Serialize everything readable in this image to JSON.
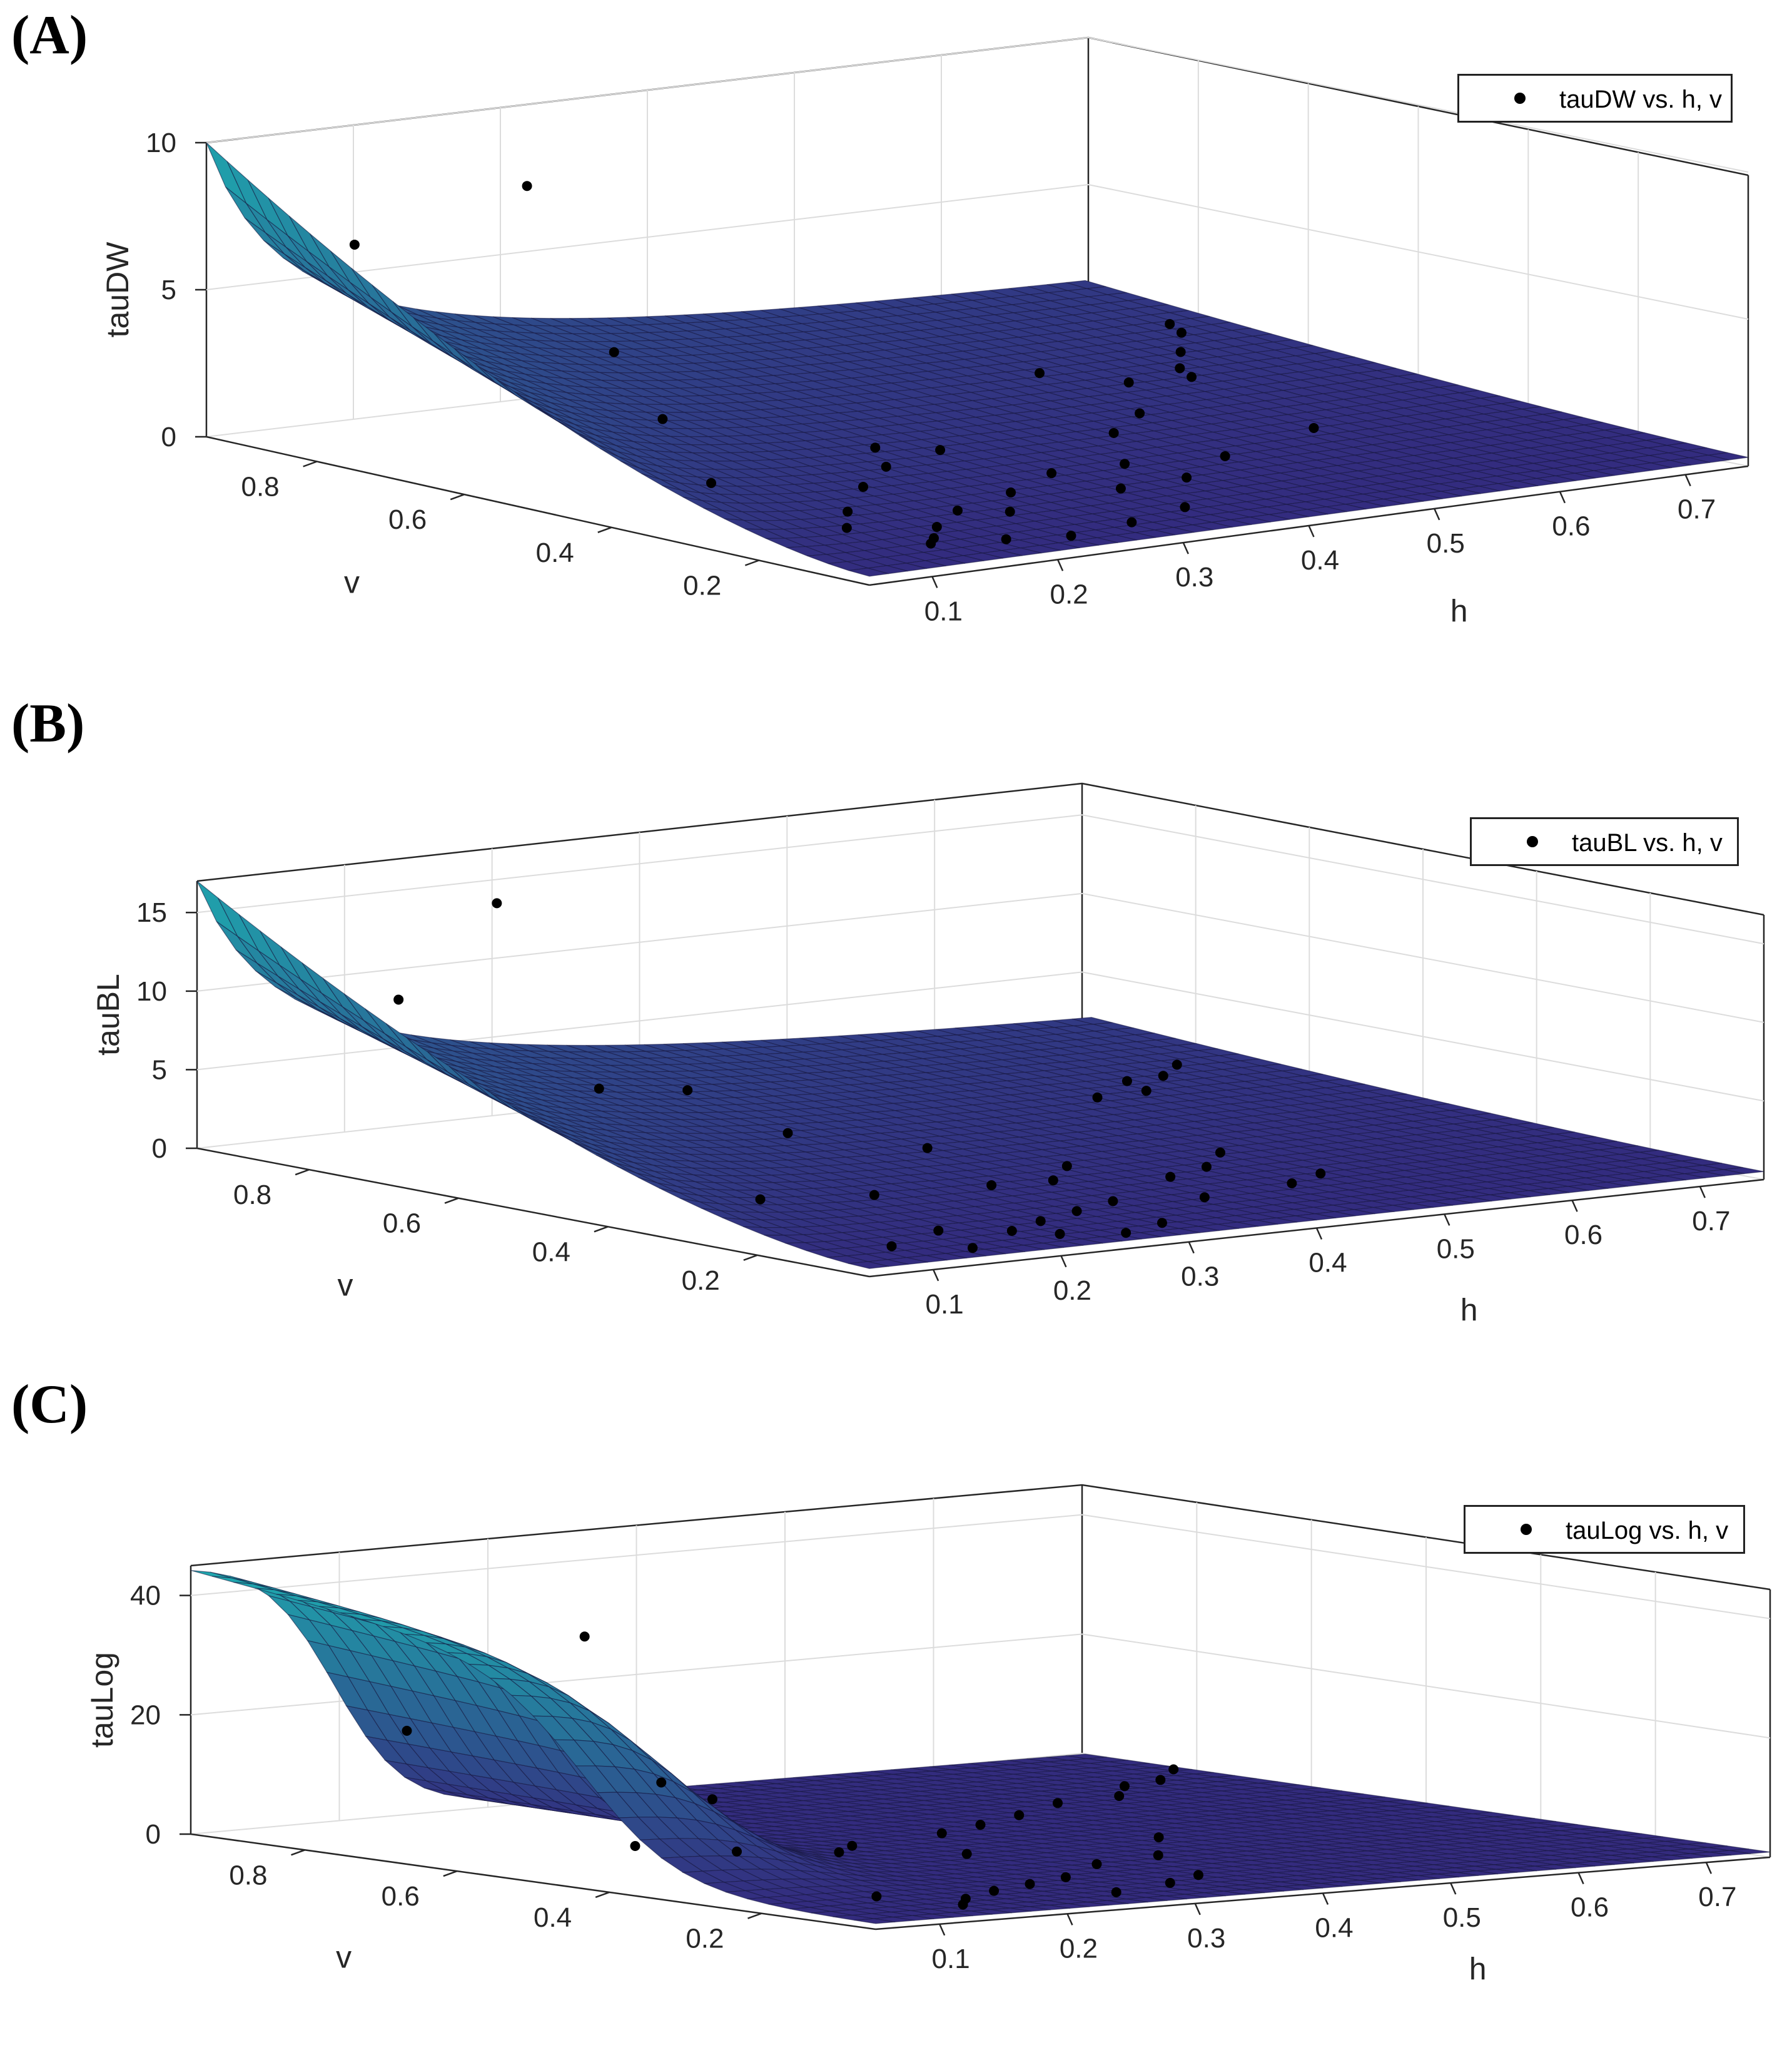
{
  "figure": {
    "panels": [
      {
        "label": "(A)",
        "legend": "tauDW vs. h, v"
      },
      {
        "label": "(B)",
        "legend": "tauBL vs. h, v"
      },
      {
        "label": "(C)",
        "legend": "tauLog vs. h, v"
      }
    ]
  },
  "chart_data": [
    {
      "type": "surface",
      "title": "(A)",
      "xlabel": "h",
      "ylabel": "v",
      "zlabel": "tauDW",
      "legend": "tauDW vs. h, v",
      "xlim": [
        0.05,
        0.75
      ],
      "ylim": [
        0.05,
        0.95
      ],
      "zlim": [
        0,
        10
      ],
      "xticks": [
        "0.1",
        "0.2",
        "0.3",
        "0.4",
        "0.5",
        "0.6",
        "0.7"
      ],
      "yticks": [
        "0.2",
        "0.4",
        "0.6",
        "0.8"
      ],
      "zticks": [
        "0",
        "5",
        "10"
      ],
      "surface_model": "rational",
      "points": [
        {
          "h": 0.08,
          "v": 0.8,
          "z": 7.2
        },
        {
          "h": 0.1,
          "v": 0.6,
          "z": 10.2
        },
        {
          "h": 0.14,
          "v": 0.55,
          "z": 4.6
        },
        {
          "h": 0.12,
          "v": 0.45,
          "z": 3.0
        },
        {
          "h": 0.1,
          "v": 0.35,
          "z": 1.5
        },
        {
          "h": 0.15,
          "v": 0.25,
          "z": 0.8
        },
        {
          "h": 0.18,
          "v": 0.28,
          "z": 1.3
        },
        {
          "h": 0.21,
          "v": 0.3,
          "z": 1.7
        },
        {
          "h": 0.26,
          "v": 0.4,
          "z": 1.5
        },
        {
          "h": 0.3,
          "v": 0.38,
          "z": 1.3
        },
        {
          "h": 0.22,
          "v": 0.22,
          "z": 0.6
        },
        {
          "h": 0.25,
          "v": 0.2,
          "z": 0.5
        },
        {
          "h": 0.18,
          "v": 0.18,
          "z": 0.5
        },
        {
          "h": 0.16,
          "v": 0.15,
          "z": 0.4
        },
        {
          "h": 0.28,
          "v": 0.25,
          "z": 0.7
        },
        {
          "h": 0.33,
          "v": 0.28,
          "z": 0.9
        },
        {
          "h": 0.35,
          "v": 0.22,
          "z": 0.6
        },
        {
          "h": 0.4,
          "v": 0.3,
          "z": 0.7
        },
        {
          "h": 0.45,
          "v": 0.4,
          "z": 0.9
        },
        {
          "h": 0.5,
          "v": 0.45,
          "z": 1.0
        },
        {
          "h": 0.55,
          "v": 0.55,
          "z": 1.2
        },
        {
          "h": 0.6,
          "v": 0.55,
          "z": 1.1
        },
        {
          "h": 0.62,
          "v": 0.6,
          "z": 1.0
        },
        {
          "h": 0.65,
          "v": 0.65,
          "z": 1.1
        },
        {
          "h": 0.68,
          "v": 0.7,
          "z": 1.3
        },
        {
          "h": 0.7,
          "v": 0.75,
          "z": 1.2
        },
        {
          "h": 0.58,
          "v": 0.35,
          "z": 0.6
        },
        {
          "h": 0.48,
          "v": 0.3,
          "z": 0.5
        },
        {
          "h": 0.42,
          "v": 0.25,
          "z": 0.4
        },
        {
          "h": 0.36,
          "v": 0.15,
          "z": 0.3
        },
        {
          "h": 0.3,
          "v": 0.12,
          "z": 0.3
        },
        {
          "h": 0.24,
          "v": 0.1,
          "z": 0.3
        },
        {
          "h": 0.2,
          "v": 0.12,
          "z": 0.3
        },
        {
          "h": 0.52,
          "v": 0.62,
          "z": 1.3
        },
        {
          "h": 0.12,
          "v": 0.2,
          "z": 0.7
        },
        {
          "h": 0.14,
          "v": 0.12,
          "z": 0.5
        }
      ]
    },
    {
      "type": "surface",
      "title": "(B)",
      "xlabel": "h",
      "ylabel": "v",
      "zlabel": "tauBL",
      "legend": "tauBL vs. h, v",
      "xlim": [
        0.05,
        0.75
      ],
      "ylim": [
        0.05,
        0.95
      ],
      "zlim": [
        0,
        17
      ],
      "xticks": [
        "0.1",
        "0.2",
        "0.3",
        "0.4",
        "0.5",
        "0.6",
        "0.7"
      ],
      "yticks": [
        "0.2",
        "0.4",
        "0.6",
        "0.8"
      ],
      "zticks": [
        "0",
        "5",
        "10",
        "15"
      ],
      "surface_model": "rational",
      "points": [
        {
          "h": 0.08,
          "v": 0.6,
          "z": 18.5
        },
        {
          "h": 0.12,
          "v": 0.8,
          "z": 10.2
        },
        {
          "h": 0.16,
          "v": 0.6,
          "z": 6.0
        },
        {
          "h": 0.2,
          "v": 0.55,
          "z": 6.0
        },
        {
          "h": 0.22,
          "v": 0.45,
          "z": 4.0
        },
        {
          "h": 0.3,
          "v": 0.4,
          "z": 2.8
        },
        {
          "h": 0.14,
          "v": 0.35,
          "z": 1.4
        },
        {
          "h": 0.2,
          "v": 0.3,
          "z": 1.6
        },
        {
          "h": 0.28,
          "v": 0.28,
          "z": 1.7
        },
        {
          "h": 0.34,
          "v": 0.3,
          "z": 1.3
        },
        {
          "h": 0.38,
          "v": 0.35,
          "z": 1.4
        },
        {
          "h": 0.42,
          "v": 0.28,
          "z": 1.0
        },
        {
          "h": 0.46,
          "v": 0.3,
          "z": 1.1
        },
        {
          "h": 0.5,
          "v": 0.35,
          "z": 1.2
        },
        {
          "h": 0.55,
          "v": 0.6,
          "z": 2.0
        },
        {
          "h": 0.6,
          "v": 0.62,
          "z": 1.8
        },
        {
          "h": 0.62,
          "v": 0.68,
          "z": 1.7
        },
        {
          "h": 0.66,
          "v": 0.7,
          "z": 1.5
        },
        {
          "h": 0.7,
          "v": 0.75,
          "z": 1.4
        },
        {
          "h": 0.18,
          "v": 0.18,
          "z": 0.6
        },
        {
          "h": 0.22,
          "v": 0.15,
          "z": 0.5
        },
        {
          "h": 0.26,
          "v": 0.18,
          "z": 0.5
        },
        {
          "h": 0.3,
          "v": 0.2,
          "z": 0.6
        },
        {
          "h": 0.34,
          "v": 0.22,
          "z": 0.7
        },
        {
          "h": 0.24,
          "v": 0.12,
          "z": 0.4
        },
        {
          "h": 0.28,
          "v": 0.1,
          "z": 0.3
        },
        {
          "h": 0.32,
          "v": 0.12,
          "z": 0.4
        },
        {
          "h": 0.4,
          "v": 0.2,
          "z": 0.6
        },
        {
          "h": 0.48,
          "v": 0.22,
          "z": 0.6
        },
        {
          "h": 0.52,
          "v": 0.25,
          "z": 0.6
        },
        {
          "h": 0.16,
          "v": 0.1,
          "z": 0.4
        },
        {
          "h": 0.12,
          "v": 0.14,
          "z": 0.5
        }
      ]
    },
    {
      "type": "surface",
      "title": "(C)",
      "xlabel": "h",
      "ylabel": "v",
      "zlabel": "tauLog",
      "legend": "tauLog vs. h, v",
      "xlim": [
        0.05,
        0.75
      ],
      "ylim": [
        0.05,
        0.95
      ],
      "zlim": [
        0,
        45
      ],
      "xticks": [
        "0.1",
        "0.2",
        "0.3",
        "0.4",
        "0.5",
        "0.6",
        "0.7"
      ],
      "yticks": [
        "0.2",
        "0.4",
        "0.6",
        "0.8"
      ],
      "zticks": [
        "0",
        "20",
        "40"
      ],
      "surface_model": "logistic",
      "points": [
        {
          "h": 0.1,
          "v": 0.75,
          "z": 20.0
        },
        {
          "h": 0.12,
          "v": 0.55,
          "z": 39.0
        },
        {
          "h": 0.1,
          "v": 0.45,
          "z": 6.0
        },
        {
          "h": 0.12,
          "v": 0.35,
          "z": 6.5
        },
        {
          "h": 0.18,
          "v": 0.55,
          "z": 13.5
        },
        {
          "h": 0.22,
          "v": 0.55,
          "z": 10.0
        },
        {
          "h": 0.2,
          "v": 0.35,
          "z": 5.0
        },
        {
          "h": 0.24,
          "v": 0.4,
          "z": 4.5
        },
        {
          "h": 0.3,
          "v": 0.35,
          "z": 3.0
        },
        {
          "h": 0.34,
          "v": 0.45,
          "z": 4.0
        },
        {
          "h": 0.4,
          "v": 0.5,
          "z": 3.5
        },
        {
          "h": 0.46,
          "v": 0.55,
          "z": 3.2
        },
        {
          "h": 0.52,
          "v": 0.6,
          "z": 3.3
        },
        {
          "h": 0.58,
          "v": 0.62,
          "z": 3.1
        },
        {
          "h": 0.62,
          "v": 0.68,
          "z": 3.0
        },
        {
          "h": 0.66,
          "v": 0.7,
          "z": 3.0
        },
        {
          "h": 0.7,
          "v": 0.75,
          "z": 3.2
        },
        {
          "h": 0.48,
          "v": 0.4,
          "z": 1.8
        },
        {
          "h": 0.42,
          "v": 0.3,
          "z": 1.6
        },
        {
          "h": 0.36,
          "v": 0.28,
          "z": 1.5
        },
        {
          "h": 0.3,
          "v": 0.22,
          "z": 1.4
        },
        {
          "h": 0.26,
          "v": 0.2,
          "z": 1.3
        },
        {
          "h": 0.22,
          "v": 0.18,
          "z": 1.2
        },
        {
          "h": 0.18,
          "v": 0.15,
          "z": 1.1
        },
        {
          "h": 0.16,
          "v": 0.12,
          "z": 1.0
        },
        {
          "h": 0.28,
          "v": 0.12,
          "z": 1.0
        },
        {
          "h": 0.34,
          "v": 0.15,
          "z": 1.0
        },
        {
          "h": 0.38,
          "v": 0.18,
          "z": 1.1
        },
        {
          "h": 0.14,
          "v": 0.2,
          "z": 1.3
        }
      ]
    }
  ]
}
